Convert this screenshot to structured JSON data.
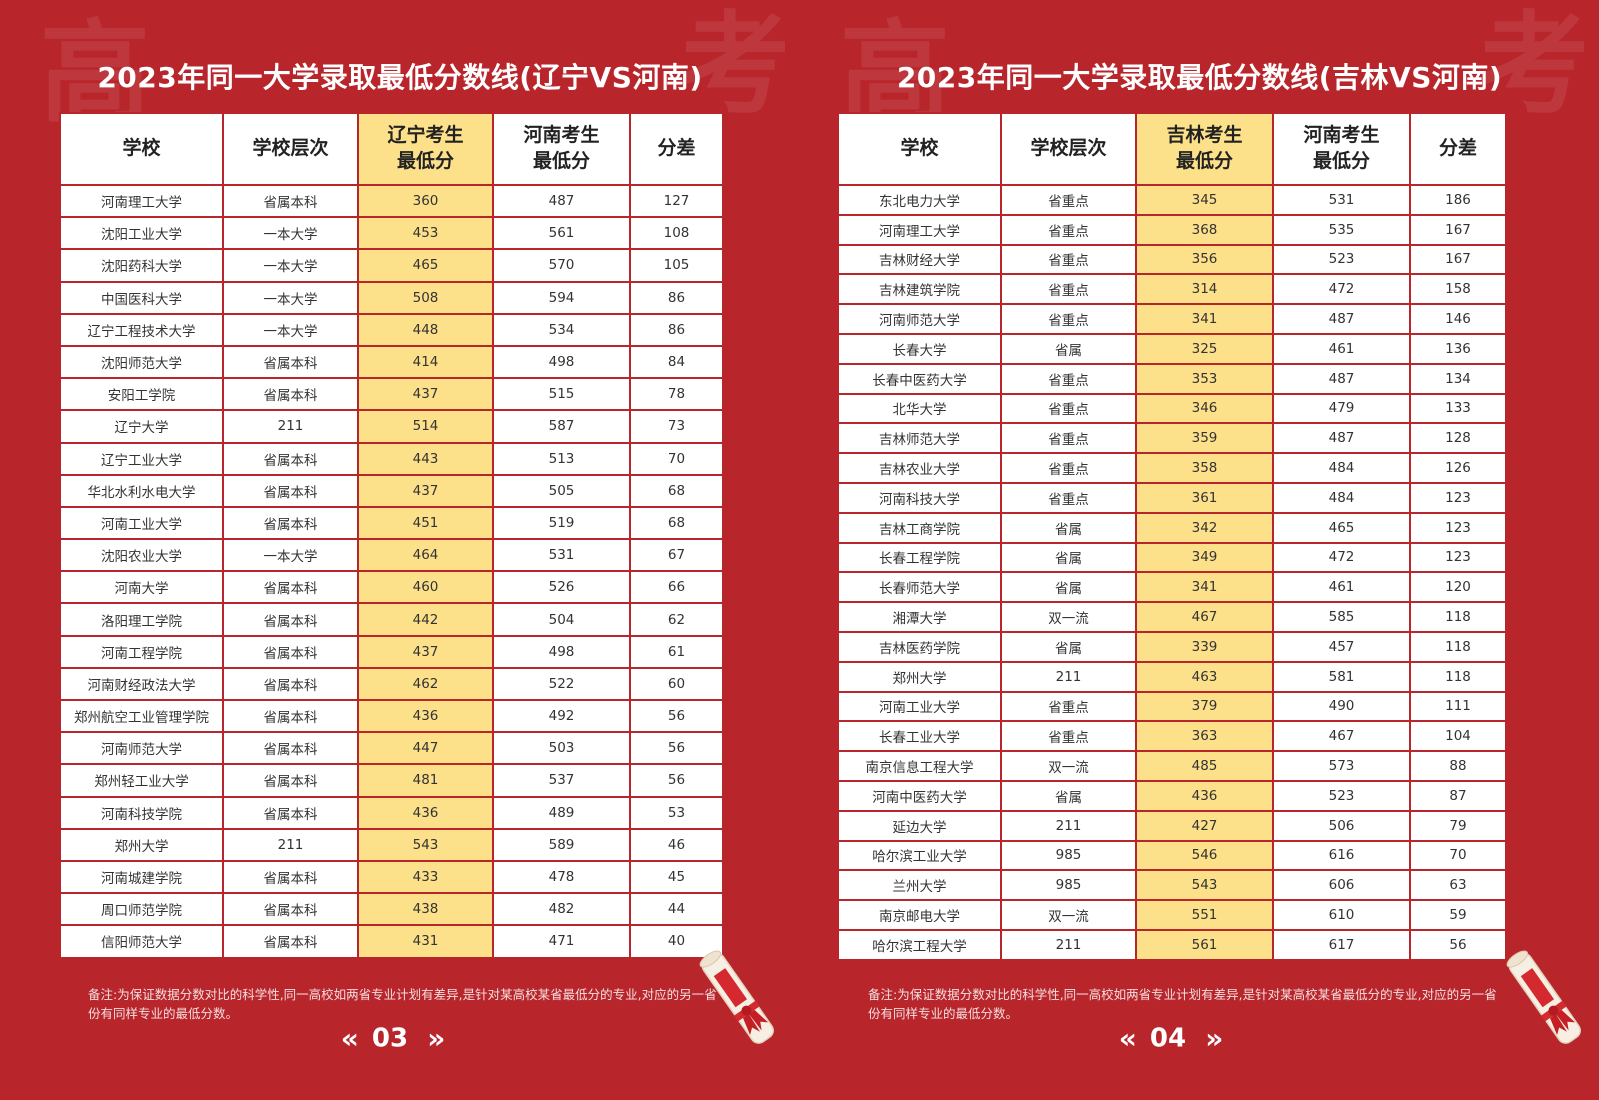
{
  "background_color": "#b8262c",
  "highlight_color": "#fde08a",
  "left": {
    "bg_chars": [
      "高",
      "考"
    ],
    "title": "2023年同一大学录取最低分数线(辽宁VS河南)",
    "headers": [
      "学校",
      "学校层次",
      "辽宁考生\n最低分",
      "河南考生\n最低分",
      "分差"
    ],
    "rows": [
      [
        "河南理工大学",
        "省属本科",
        "360",
        "487",
        "127"
      ],
      [
        "沈阳工业大学",
        "一本大学",
        "453",
        "561",
        "108"
      ],
      [
        "沈阳药科大学",
        "一本大学",
        "465",
        "570",
        "105"
      ],
      [
        "中国医科大学",
        "一本大学",
        "508",
        "594",
        "86"
      ],
      [
        "辽宁工程技术大学",
        "一本大学",
        "448",
        "534",
        "86"
      ],
      [
        "沈阳师范大学",
        "省属本科",
        "414",
        "498",
        "84"
      ],
      [
        "安阳工学院",
        "省属本科",
        "437",
        "515",
        "78"
      ],
      [
        "辽宁大学",
        "211",
        "514",
        "587",
        "73"
      ],
      [
        "辽宁工业大学",
        "省属本科",
        "443",
        "513",
        "70"
      ],
      [
        "华北水利水电大学",
        "省属本科",
        "437",
        "505",
        "68"
      ],
      [
        "河南工业大学",
        "省属本科",
        "451",
        "519",
        "68"
      ],
      [
        "沈阳农业大学",
        "一本大学",
        "464",
        "531",
        "67"
      ],
      [
        "河南大学",
        "省属本科",
        "460",
        "526",
        "66"
      ],
      [
        "洛阳理工学院",
        "省属本科",
        "442",
        "504",
        "62"
      ],
      [
        "河南工程学院",
        "省属本科",
        "437",
        "498",
        "61"
      ],
      [
        "河南财经政法大学",
        "省属本科",
        "462",
        "522",
        "60"
      ],
      [
        "郑州航空工业管理学院",
        "省属本科",
        "436",
        "492",
        "56"
      ],
      [
        "河南师范大学",
        "省属本科",
        "447",
        "503",
        "56"
      ],
      [
        "郑州轻工业大学",
        "省属本科",
        "481",
        "537",
        "56"
      ],
      [
        "河南科技学院",
        "省属本科",
        "436",
        "489",
        "53"
      ],
      [
        "郑州大学",
        "211",
        "543",
        "589",
        "46"
      ],
      [
        "河南城建学院",
        "省属本科",
        "433",
        "478",
        "45"
      ],
      [
        "周口师范学院",
        "省属本科",
        "438",
        "482",
        "44"
      ],
      [
        "信阳师范大学",
        "省属本科",
        "431",
        "471",
        "40"
      ]
    ],
    "note": "备注:为保证数据分数对比的科学性,同一高校如两省专业计划有差异,是针对某高校某省最低分的专业,对应的另一省份有同样专业的最低分数。",
    "page_number": "03",
    "arrow_prev": "«",
    "arrow_next": "»"
  },
  "right": {
    "bg_chars": [
      "高",
      "考"
    ],
    "title": "2023年同一大学录取最低分数线(吉林VS河南)",
    "headers": [
      "学校",
      "学校层次",
      "吉林考生\n最低分",
      "河南考生\n最低分",
      "分差"
    ],
    "rows": [
      [
        "东北电力大学",
        "省重点",
        "345",
        "531",
        "186"
      ],
      [
        "河南理工大学",
        "省重点",
        "368",
        "535",
        "167"
      ],
      [
        "吉林财经大学",
        "省重点",
        "356",
        "523",
        "167"
      ],
      [
        "吉林建筑学院",
        "省重点",
        "314",
        "472",
        "158"
      ],
      [
        "河南师范大学",
        "省重点",
        "341",
        "487",
        "146"
      ],
      [
        "长春大学",
        "省属",
        "325",
        "461",
        "136"
      ],
      [
        "长春中医药大学",
        "省重点",
        "353",
        "487",
        "134"
      ],
      [
        "北华大学",
        "省重点",
        "346",
        "479",
        "133"
      ],
      [
        "吉林师范大学",
        "省重点",
        "359",
        "487",
        "128"
      ],
      [
        "吉林农业大学",
        "省重点",
        "358",
        "484",
        "126"
      ],
      [
        "河南科技大学",
        "省重点",
        "361",
        "484",
        "123"
      ],
      [
        "吉林工商学院",
        "省属",
        "342",
        "465",
        "123"
      ],
      [
        "长春工程学院",
        "省属",
        "349",
        "472",
        "123"
      ],
      [
        "长春师范大学",
        "省属",
        "341",
        "461",
        "120"
      ],
      [
        "湘潭大学",
        "双一流",
        "467",
        "585",
        "118"
      ],
      [
        "吉林医药学院",
        "省属",
        "339",
        "457",
        "118"
      ],
      [
        "郑州大学",
        "211",
        "463",
        "581",
        "118"
      ],
      [
        "河南工业大学",
        "省重点",
        "379",
        "490",
        "111"
      ],
      [
        "长春工业大学",
        "省重点",
        "363",
        "467",
        "104"
      ],
      [
        "南京信息工程大学",
        "双一流",
        "485",
        "573",
        "88"
      ],
      [
        "河南中医药大学",
        "省属",
        "436",
        "523",
        "87"
      ],
      [
        "延边大学",
        "211",
        "427",
        "506",
        "79"
      ],
      [
        "哈尔滨工业大学",
        "985",
        "546",
        "616",
        "70"
      ],
      [
        "兰州大学",
        "985",
        "543",
        "606",
        "63"
      ],
      [
        "南京邮电大学",
        "双一流",
        "551",
        "610",
        "59"
      ],
      [
        "哈尔滨工程大学",
        "211",
        "561",
        "617",
        "56"
      ]
    ],
    "note": "备注:为保证数据分数对比的科学性,同一高校如两省专业计划有差异,是针对某高校某省最低分的专业,对应的另一省份有同样专业的最低分数。",
    "page_number": "04",
    "arrow_prev": "«",
    "arrow_next": "»"
  }
}
